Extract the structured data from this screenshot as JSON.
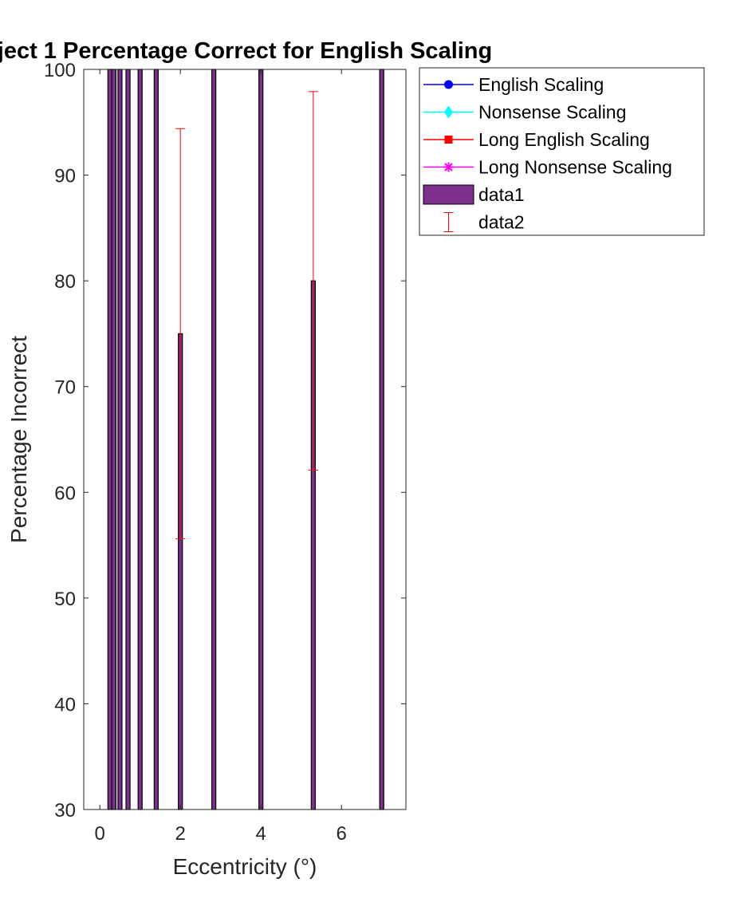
{
  "chart_data": {
    "type": "bar",
    "title": "ject 1 Percentage Correct for English Scaling",
    "xlabel": "Eccentricity (°)",
    "ylabel": "Percentage Incorrect",
    "xlim": [
      -0.4,
      7.6
    ],
    "ylim": [
      30,
      100
    ],
    "xticks": [
      0,
      2,
      4,
      6
    ],
    "yticks": [
      30,
      40,
      50,
      60,
      70,
      80,
      90,
      100
    ],
    "bar_width": 0.1,
    "bars": [
      {
        "x": 0.25,
        "value": 100
      },
      {
        "x": 0.35,
        "value": 100
      },
      {
        "x": 0.5,
        "value": 100
      },
      {
        "x": 0.7,
        "value": 100
      },
      {
        "x": 1.0,
        "value": 100
      },
      {
        "x": 1.4,
        "value": 100
      },
      {
        "x": 2.0,
        "value": 75
      },
      {
        "x": 2.83,
        "value": 100
      },
      {
        "x": 4.0,
        "value": 100
      },
      {
        "x": 5.3,
        "value": 80
      },
      {
        "x": 7.0,
        "value": 100
      }
    ],
    "errorbars": [
      {
        "x": 2.0,
        "center": 75,
        "low": 55.6,
        "high": 94.4
      },
      {
        "x": 5.3,
        "center": 80,
        "low": 62.1,
        "high": 97.9
      }
    ],
    "colors": {
      "bar_fill": "#7e2f8e",
      "bar_edge": "#000000",
      "errorbar": "#ff0000",
      "axis": "#262626"
    },
    "legend": {
      "placement": "outside-top-right",
      "entries": [
        {
          "label": "English Scaling",
          "kind": "line",
          "color": "#0000ff",
          "marker": "circle"
        },
        {
          "label": "Nonsense Scaling",
          "kind": "line",
          "color": "#00ffff",
          "marker": "diamond"
        },
        {
          "label": "Long English Scaling",
          "kind": "line",
          "color": "#ff0000",
          "marker": "square"
        },
        {
          "label": "Long Nonsense Scaling",
          "kind": "line",
          "color": "#ff00ff",
          "marker": "asterisk"
        },
        {
          "label": "data1",
          "kind": "patch",
          "color": "#7e2f8e"
        },
        {
          "label": "data2",
          "kind": "errorbar",
          "color": "#ff0000"
        }
      ]
    }
  }
}
